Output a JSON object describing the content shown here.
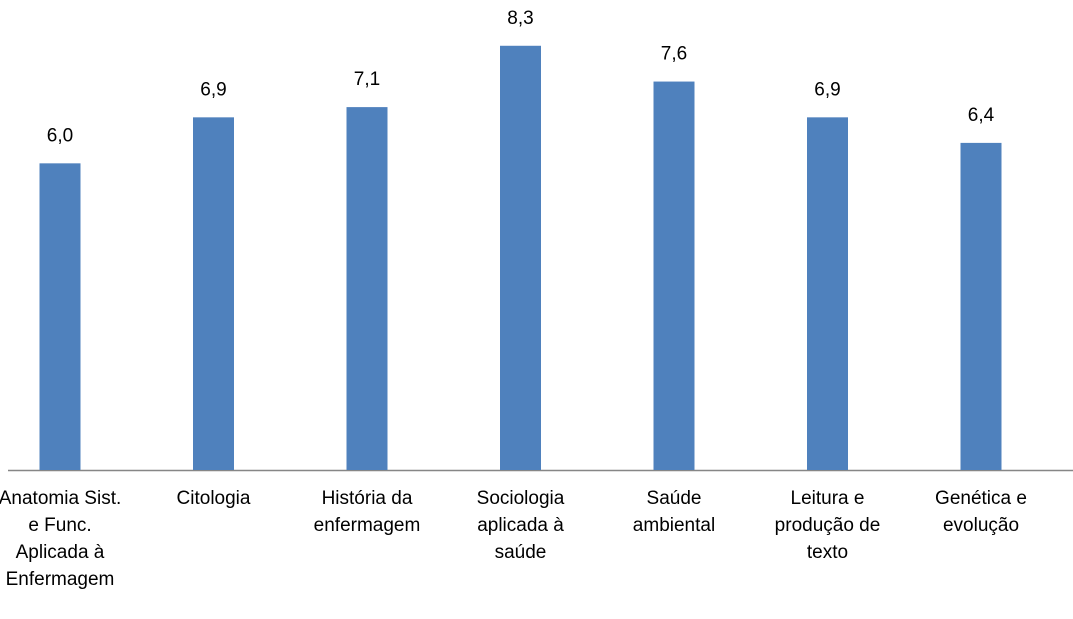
{
  "chart_data": {
    "type": "bar",
    "categories": [
      "Anatomia Sist. e Func. Aplicada à Enfermagem",
      "Citologia",
      "História da enfermagem",
      "Sociologia aplicada à saúde",
      "Saúde ambiental",
      "Leitura e produção de texto",
      "Genética e evolução"
    ],
    "values": [
      6.0,
      6.9,
      7.1,
      8.3,
      7.6,
      6.9,
      6.4
    ],
    "value_labels": [
      "6,0",
      "6,9",
      "7,1",
      "8,3",
      "7,6",
      "6,9",
      "6,4"
    ],
    "color": "#4f81bd",
    "ylim": [
      0,
      9
    ]
  }
}
